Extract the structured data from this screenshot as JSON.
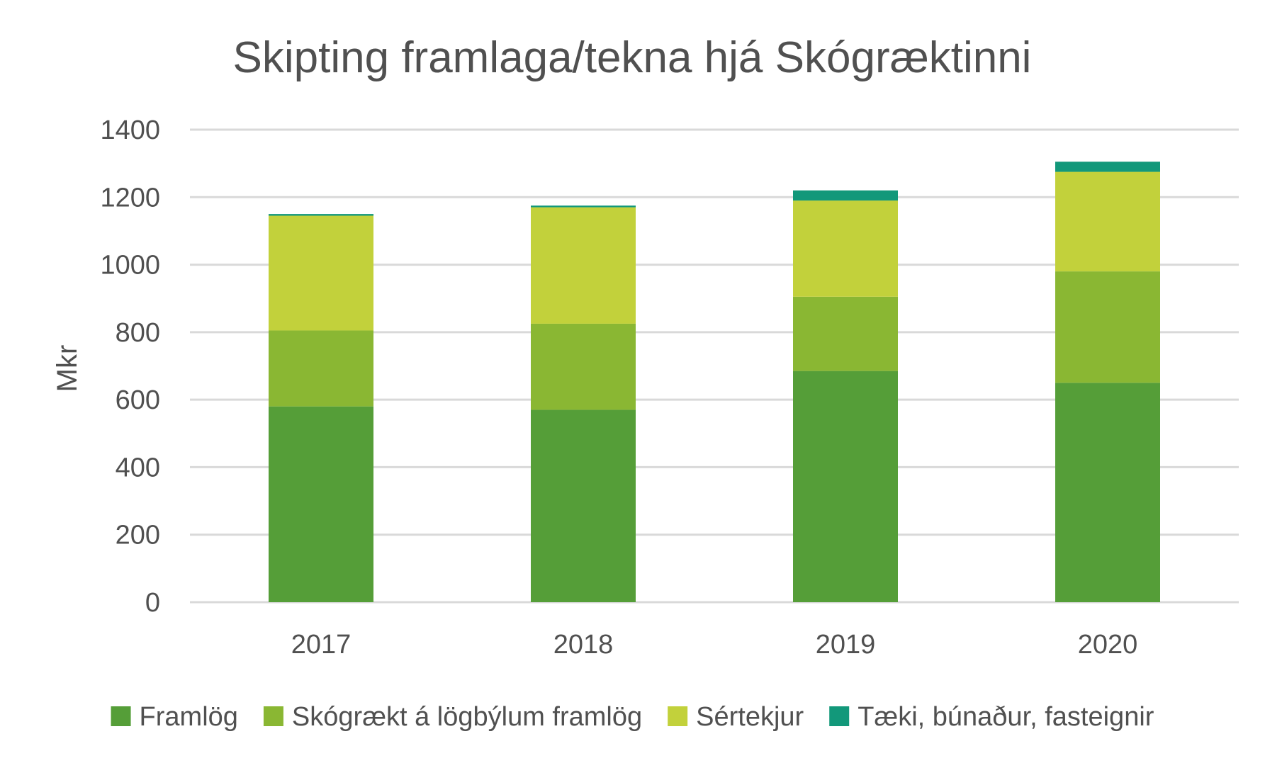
{
  "chart_data": {
    "type": "bar",
    "stacked": true,
    "title": "Skipting framlaga/tekna hjá Skógræktinni",
    "xlabel": "",
    "ylabel": "Mkr",
    "ylim": [
      0,
      1400
    ],
    "yticks": [
      0,
      200,
      400,
      600,
      800,
      1000,
      1200,
      1400
    ],
    "grid": true,
    "legend_position": "bottom",
    "categories": [
      "2017",
      "2018",
      "2019",
      "2020"
    ],
    "series": [
      {
        "name": "Framlög",
        "color": "#559e38",
        "values": [
          580,
          570,
          685,
          650
        ]
      },
      {
        "name": "Skógrækt á lögbýlum framlög",
        "color": "#8ab733",
        "values": [
          225,
          255,
          220,
          330
        ]
      },
      {
        "name": "Sértekjur",
        "color": "#c2d13b",
        "values": [
          340,
          345,
          285,
          295
        ]
      },
      {
        "name": "Tæki, búnaður, fasteignir",
        "color": "#12987a",
        "values": [
          5,
          5,
          30,
          30
        ]
      }
    ]
  }
}
